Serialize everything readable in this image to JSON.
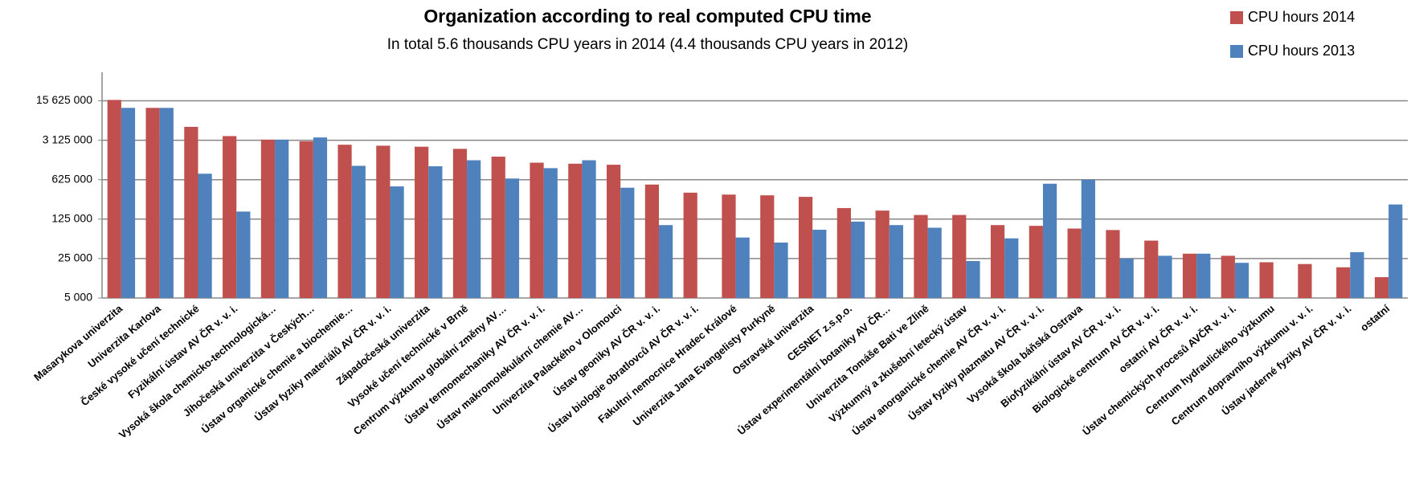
{
  "chart_data": {
    "type": "bar",
    "title": "Organization according to real computed CPU time",
    "subtitle": "In total 5.6 thousands CPU years in 2014 (4.4 thousands CPU years in 2012)",
    "categories": [
      "Masarykova univerzita",
      "Univerzita Karlova",
      "České vysoké učení technické",
      "Fyzikální ústav AV ČR v. v. i.",
      "Vysoká škola chemicko-technologická…",
      "Jihočeská univerzita v Českých…",
      "Ústav organické chemie a biochemie…",
      "Ústav fyziky materiálů AV ČR v. v. i.",
      "Západočeská univerzita",
      "Vysoké učení technické v Brně",
      "Centrum výzkumu globální změny AV…",
      "Ústav termomechaniky AV ČR v. v. i.",
      "Ústav makromolekulární chemie AV…",
      "Univerzita Palackého v Olomouci",
      "Ústav geoniky AV ČR v. v. i.",
      "Ústav biologie obratlovců AV ČR v. v. i.",
      "Fakultní nemocnice Hradec Králové",
      "Univerzita Jana Evangelisty Purkyně",
      "Ostravská univerzita",
      "CESNET z.s.p.o.",
      "Ústav experimentální botaniky AV ČR…",
      "Univerzita Tomáše Bati ve Zlíně",
      "Výzkumný a zkušební letecký ústav",
      "Ústav anorganické chemie AV ČR v. v. i.",
      "Ústav fyziky plazmatu AV ČR v. v. i.",
      "Vysoká škola báňská Ostrava",
      "Biofyzikální ústav AV ČR v. v. i.",
      "Biologické centrum AV ČR v. v. i.",
      "ostatní AV ČR v. v. i.",
      "Ústav chemických procesů AVČR v. v. i.",
      "Centrum hydraulického výzkumu",
      "Centrum dopravního výzkumu v. v. i.",
      "Ústav jaderné fyziky AV ČR v. v. i.",
      "ostatní"
    ],
    "series": [
      {
        "name": "CPU hours 2014",
        "color": "#c0504d",
        "values": [
          16200000,
          11700000,
          5400000,
          3700000,
          3200000,
          3000000,
          2600000,
          2500000,
          2400000,
          2200000,
          1600000,
          1250000,
          1200000,
          1150000,
          512000,
          368000,
          340000,
          330000,
          310000,
          196000,
          177000,
          148000,
          148000,
          98000,
          95000,
          85000,
          80000,
          52000,
          30500,
          28000,
          21500,
          20000,
          17500,
          11700
        ]
      },
      {
        "name": "CPU hours 2013",
        "color": "#4f81bd",
        "values": [
          11700000,
          11700000,
          797000,
          170000,
          3200000,
          3500000,
          1100000,
          475000,
          1080000,
          1380000,
          655000,
          1000000,
          1380000,
          450000,
          98000,
          null,
          59000,
          48000,
          81000,
          113000,
          98000,
          88000,
          22600,
          57000,
          530000,
          625000,
          25000,
          28000,
          30500,
          21000,
          null,
          null,
          32500,
          227000
        ]
      }
    ],
    "ylim": [
      5000,
      50000000
    ],
    "yticks": [
      {
        "value": 5000,
        "label": "5 000"
      },
      {
        "value": 25000,
        "label": "25 000"
      },
      {
        "value": 125000,
        "label": "125 000"
      },
      {
        "value": 625000,
        "label": "625 000"
      },
      {
        "value": 3125000,
        "label": "3 125 000"
      },
      {
        "value": 15625000,
        "label": "15 625 000"
      }
    ],
    "log_scale": true,
    "grid": true
  }
}
